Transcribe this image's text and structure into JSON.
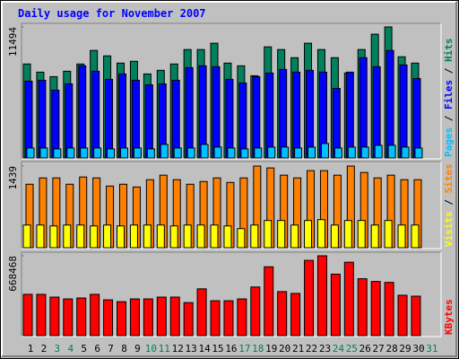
{
  "chart_data": [
    {
      "type": "bar",
      "title": "Daily usage for November 2007",
      "series": [
        {
          "name": "Hits",
          "color": "#00805c",
          "values": [
            8267,
            7555,
            7162,
            7634,
            8264,
            9444,
            8972,
            8342,
            8500,
            7398,
            7713,
            8264,
            9523,
            9523,
            10074,
            8342,
            8106,
            7240,
            9759,
            9523,
            8815,
            10074,
            9523,
            8815,
            7477,
            9523,
            10861,
            11494,
            8893,
            8342,
            null
          ]
        },
        {
          "name": "Files",
          "color": "#0000ff",
          "values": [
            6768,
            6847,
            5981,
            6532,
            8106,
            7634,
            6926,
            7398,
            6847,
            6453,
            6532,
            6847,
            7949,
            8106,
            8027,
            6926,
            6611,
            7162,
            7477,
            7791,
            7555,
            7713,
            7555,
            6139,
            7555,
            8815,
            8027,
            9444,
            8185,
            7004,
            null
          ]
        },
        {
          "name": "Pages",
          "color": "#00c0ff",
          "values": [
            945,
            945,
            866,
            945,
            945,
            945,
            866,
            945,
            945,
            866,
            1260,
            945,
            945,
            1260,
            1024,
            945,
            866,
            945,
            1024,
            1024,
            945,
            1024,
            1338,
            945,
            1024,
            1024,
            1180,
            1180,
            1024,
            945,
            null
          ]
        }
      ],
      "ylim": [
        0,
        11494
      ],
      "yticks": [
        11494
      ]
    },
    {
      "type": "bar",
      "series": [
        {
          "name": "Sites",
          "color": "#ff8000",
          "values": [
            1122,
            1232,
            1232,
            1122,
            1248,
            1232,
            1090,
            1122,
            1074,
            1201,
            1280,
            1201,
            1122,
            1169,
            1232,
            1153,
            1232,
            1439,
            1406,
            1280,
            1232,
            1359,
            1359,
            1280,
            1439,
            1327,
            1232,
            1280,
            1201,
            1201,
            null
          ]
        },
        {
          "name": "Visits",
          "color": "#ffff00",
          "values": [
            411,
            411,
            395,
            411,
            411,
            395,
            411,
            395,
            411,
            411,
            411,
            395,
            411,
            411,
            411,
            395,
            348,
            411,
            490,
            490,
            411,
            490,
            505,
            411,
            490,
            490,
            411,
            490,
            411,
            411,
            null
          ]
        }
      ],
      "ylim": [
        0,
        1439
      ],
      "yticks": [
        1439
      ]
    },
    {
      "type": "bar",
      "categories": [
        "1",
        "2",
        "3",
        "4",
        "5",
        "6",
        "7",
        "8",
        "9",
        "10",
        "11",
        "12",
        "13",
        "14",
        "15",
        "16",
        "17",
        "18",
        "19",
        "20",
        "21",
        "22",
        "23",
        "24",
        "25",
        "26",
        "27",
        "28",
        "29",
        "30",
        "31"
      ],
      "highlight_indices": [
        2,
        3,
        9,
        10,
        16,
        17,
        23,
        24,
        30
      ],
      "highlight_color": "#00805c",
      "series": [
        {
          "name": "KBytes",
          "color": "#ff0000",
          "values": [
            349416,
            349416,
            326628,
            311436,
            319032,
            349416,
            303840,
            288648,
            311436,
            311436,
            326628,
            326628,
            281052,
            394992,
            296244,
            296244,
            311436,
            410184,
            577296,
            372204,
            357012,
            630468,
            668468,
            516528,
            615276,
            478548,
            455760,
            448164,
            341820,
            334224,
            null
          ]
        }
      ],
      "ylim": [
        0,
        668468
      ],
      "yticks": [
        668468
      ]
    }
  ],
  "legend_separator": " / "
}
